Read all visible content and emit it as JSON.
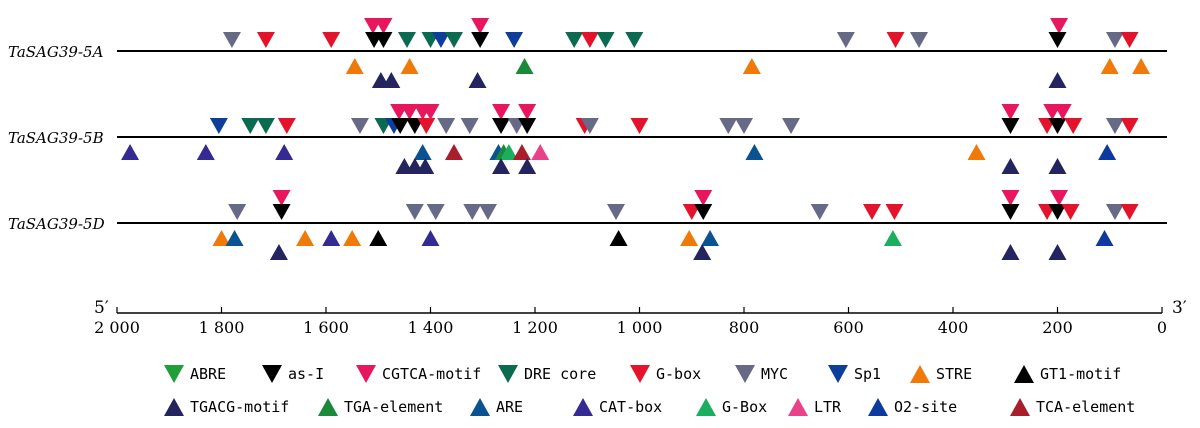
{
  "chart_data": {
    "type": "cis-element-map",
    "axis": {
      "min": 0,
      "max": 2000,
      "reversed": true,
      "ticks": [
        {
          "value": 2000,
          "label": "2 000"
        },
        {
          "value": 1800,
          "label": "1 800"
        },
        {
          "value": 1600,
          "label": "1 600"
        },
        {
          "value": 1400,
          "label": "1 400"
        },
        {
          "value": 1200,
          "label": "1 200"
        },
        {
          "value": 1000,
          "label": "1 000"
        },
        {
          "value": 800,
          "label": "800"
        },
        {
          "value": 600,
          "label": "600"
        },
        {
          "value": 400,
          "label": "400"
        },
        {
          "value": 200,
          "label": "200"
        },
        {
          "value": 0,
          "label": "0"
        }
      ],
      "start_label": "5′",
      "end_label": "3′"
    },
    "elements": [
      {
        "key": "ABRE",
        "name": "ABRE",
        "color": "#1f9e3a",
        "dir": "down"
      },
      {
        "key": "asI",
        "name": "as-I",
        "color": "#000000",
        "dir": "down"
      },
      {
        "key": "CGTCA",
        "name": "CGTCA-motif",
        "color": "#e8175d",
        "dir": "down"
      },
      {
        "key": "DRE",
        "name": "DRE core",
        "color": "#0b6b50",
        "dir": "down"
      },
      {
        "key": "Gbox",
        "name": "G-box",
        "color": "#e3132b",
        "dir": "down"
      },
      {
        "key": "MYC",
        "name": "MYC",
        "color": "#666a86",
        "dir": "down"
      },
      {
        "key": "Sp1",
        "name": "Sp1",
        "color": "#0d3e99",
        "dir": "down"
      },
      {
        "key": "STRE",
        "name": "STRE",
        "color": "#ef7a0a",
        "dir": "up"
      },
      {
        "key": "GT1",
        "name": "GT1-motif",
        "color": "#000000",
        "dir": "up"
      },
      {
        "key": "TGACG",
        "name": "TGACG-motif",
        "color": "#24245e",
        "dir": "up"
      },
      {
        "key": "TGA",
        "name": "TGA-element",
        "color": "#1a8a3a",
        "dir": "up"
      },
      {
        "key": "ARE",
        "name": "ARE",
        "color": "#0a5291",
        "dir": "up"
      },
      {
        "key": "CAT",
        "name": "CAT-box",
        "color": "#352a91",
        "dir": "up"
      },
      {
        "key": "GBoxUp",
        "name": "G-Box",
        "color": "#1aae5e",
        "dir": "up"
      },
      {
        "key": "LTR",
        "name": "LTR",
        "color": "#e8428a",
        "dir": "up"
      },
      {
        "key": "O2",
        "name": "O2-site",
        "color": "#0e3aa0",
        "dir": "up"
      },
      {
        "key": "TCA",
        "name": "TCA-element",
        "color": "#a81e2a",
        "dir": "up"
      }
    ],
    "genes": [
      {
        "name": "TaSAG39-5A",
        "sites": [
          {
            "type": "MYC",
            "pos": 1780,
            "level": 0
          },
          {
            "type": "Gbox",
            "pos": 1715,
            "level": 0
          },
          {
            "type": "Gbox",
            "pos": 1590,
            "level": 0
          },
          {
            "type": "CGTCA",
            "pos": 1510,
            "level": 1
          },
          {
            "type": "CGTCA",
            "pos": 1490,
            "level": 1
          },
          {
            "type": "asI",
            "pos": 1508,
            "level": 0
          },
          {
            "type": "asI",
            "pos": 1490,
            "level": 0
          },
          {
            "type": "DRE",
            "pos": 1445,
            "level": 0
          },
          {
            "type": "DRE",
            "pos": 1400,
            "level": 0
          },
          {
            "type": "Sp1",
            "pos": 1380,
            "level": 0
          },
          {
            "type": "DRE",
            "pos": 1355,
            "level": 0
          },
          {
            "type": "CGTCA",
            "pos": 1305,
            "level": 1
          },
          {
            "type": "asI",
            "pos": 1305,
            "level": 0
          },
          {
            "type": "Sp1",
            "pos": 1240,
            "level": 0
          },
          {
            "type": "DRE",
            "pos": 1125,
            "level": 0
          },
          {
            "type": "Gbox",
            "pos": 1095,
            "level": 0
          },
          {
            "type": "DRE",
            "pos": 1065,
            "level": 0
          },
          {
            "type": "DRE",
            "pos": 1010,
            "level": 0
          },
          {
            "type": "MYC",
            "pos": 605,
            "level": 0
          },
          {
            "type": "Gbox",
            "pos": 510,
            "level": 0
          },
          {
            "type": "MYC",
            "pos": 465,
            "level": 0
          },
          {
            "type": "CGTCA",
            "pos": 197,
            "level": 1
          },
          {
            "type": "asI",
            "pos": 200,
            "level": 0
          },
          {
            "type": "MYC",
            "pos": 90,
            "level": 0
          },
          {
            "type": "Gbox",
            "pos": 62,
            "level": 0
          },
          {
            "type": "STRE",
            "pos": 1545,
            "level": 0
          },
          {
            "type": "TGACG",
            "pos": 1495,
            "level": 1
          },
          {
            "type": "TGACG",
            "pos": 1475,
            "level": 1
          },
          {
            "type": "STRE",
            "pos": 1440,
            "level": 0
          },
          {
            "type": "TGACG",
            "pos": 1310,
            "level": 1
          },
          {
            "type": "TGA",
            "pos": 1220,
            "level": 0
          },
          {
            "type": "STRE",
            "pos": 785,
            "level": 0
          },
          {
            "type": "TGACG",
            "pos": 200,
            "level": 1
          },
          {
            "type": "STRE",
            "pos": 100,
            "level": 0
          },
          {
            "type": "STRE",
            "pos": 40,
            "level": 0
          }
        ]
      },
      {
        "name": "TaSAG39-5B",
        "sites": [
          {
            "type": "Sp1",
            "pos": 1805,
            "level": 0
          },
          {
            "type": "DRE",
            "pos": 1745,
            "level": 0
          },
          {
            "type": "DRE",
            "pos": 1715,
            "level": 0
          },
          {
            "type": "Gbox",
            "pos": 1675,
            "level": 0
          },
          {
            "type": "MYC",
            "pos": 1535,
            "level": 0
          },
          {
            "type": "DRE",
            "pos": 1490,
            "level": 0
          },
          {
            "type": "Sp1",
            "pos": 1470,
            "level": 0
          },
          {
            "type": "CGTCA",
            "pos": 1460,
            "level": 1
          },
          {
            "type": "asI",
            "pos": 1458,
            "level": 0
          },
          {
            "type": "CGTCA",
            "pos": 1440,
            "level": 1
          },
          {
            "type": "asI",
            "pos": 1430,
            "level": 0
          },
          {
            "type": "CGTCA",
            "pos": 1415,
            "level": 1
          },
          {
            "type": "Gbox",
            "pos": 1408,
            "level": 0
          },
          {
            "type": "CGTCA",
            "pos": 1400,
            "level": 1
          },
          {
            "type": "MYC",
            "pos": 1370,
            "level": 0
          },
          {
            "type": "MYC",
            "pos": 1325,
            "level": 0
          },
          {
            "type": "CGTCA",
            "pos": 1265,
            "level": 1
          },
          {
            "type": "asI",
            "pos": 1265,
            "level": 0
          },
          {
            "type": "MYC",
            "pos": 1235,
            "level": 0
          },
          {
            "type": "CGTCA",
            "pos": 1215,
            "level": 1
          },
          {
            "type": "asI",
            "pos": 1215,
            "level": 0
          },
          {
            "type": "Gbox",
            "pos": 1105,
            "level": 0
          },
          {
            "type": "MYC",
            "pos": 1095,
            "level": 0
          },
          {
            "type": "Gbox",
            "pos": 1000,
            "level": 0
          },
          {
            "type": "MYC",
            "pos": 830,
            "level": 0
          },
          {
            "type": "MYC",
            "pos": 800,
            "level": 0
          },
          {
            "type": "MYC",
            "pos": 710,
            "level": 0
          },
          {
            "type": "CGTCA",
            "pos": 290,
            "level": 1
          },
          {
            "type": "asI",
            "pos": 290,
            "level": 0
          },
          {
            "type": "CGTCA",
            "pos": 210,
            "level": 1
          },
          {
            "type": "Gbox",
            "pos": 220,
            "level": 0
          },
          {
            "type": "asI",
            "pos": 200,
            "level": 0
          },
          {
            "type": "CGTCA",
            "pos": 190,
            "level": 1
          },
          {
            "type": "Gbox",
            "pos": 170,
            "level": 0
          },
          {
            "type": "MYC",
            "pos": 90,
            "level": 0
          },
          {
            "type": "Gbox",
            "pos": 62,
            "level": 0
          },
          {
            "type": "CAT",
            "pos": 1975,
            "level": 0
          },
          {
            "type": "CAT",
            "pos": 1830,
            "level": 0
          },
          {
            "type": "CAT",
            "pos": 1680,
            "level": 0
          },
          {
            "type": "ARE",
            "pos": 1415,
            "level": 0
          },
          {
            "type": "TGACG",
            "pos": 1450,
            "level": 1
          },
          {
            "type": "TGACG",
            "pos": 1430,
            "level": 1
          },
          {
            "type": "TGACG",
            "pos": 1410,
            "level": 1
          },
          {
            "type": "TCA",
            "pos": 1355,
            "level": 0
          },
          {
            "type": "ARE",
            "pos": 1270,
            "level": 0
          },
          {
            "type": "TGA",
            "pos": 1260,
            "level": 0
          },
          {
            "type": "GBoxUp",
            "pos": 1250,
            "level": 0
          },
          {
            "type": "TCA",
            "pos": 1225,
            "level": 0
          },
          {
            "type": "LTR",
            "pos": 1190,
            "level": 0
          },
          {
            "type": "TGACG",
            "pos": 1265,
            "level": 1
          },
          {
            "type": "TGACG",
            "pos": 1215,
            "level": 1
          },
          {
            "type": "ARE",
            "pos": 780,
            "level": 0
          },
          {
            "type": "STRE",
            "pos": 355,
            "level": 0
          },
          {
            "type": "TGACG",
            "pos": 290,
            "level": 1
          },
          {
            "type": "TGACG",
            "pos": 200,
            "level": 1
          },
          {
            "type": "O2",
            "pos": 105,
            "level": 0
          }
        ]
      },
      {
        "name": "TaSAG39-5D",
        "sites": [
          {
            "type": "MYC",
            "pos": 1770,
            "level": 0
          },
          {
            "type": "CGTCA",
            "pos": 1685,
            "level": 1
          },
          {
            "type": "asI",
            "pos": 1685,
            "level": 0
          },
          {
            "type": "MYC",
            "pos": 1430,
            "level": 0
          },
          {
            "type": "MYC",
            "pos": 1390,
            "level": 0
          },
          {
            "type": "MYC",
            "pos": 1320,
            "level": 0
          },
          {
            "type": "MYC",
            "pos": 1290,
            "level": 0
          },
          {
            "type": "MYC",
            "pos": 1045,
            "level": 0
          },
          {
            "type": "Gbox",
            "pos": 900,
            "level": 0
          },
          {
            "type": "CGTCA",
            "pos": 878,
            "level": 1
          },
          {
            "type": "asI",
            "pos": 878,
            "level": 0
          },
          {
            "type": "MYC",
            "pos": 655,
            "level": 0
          },
          {
            "type": "Gbox",
            "pos": 555,
            "level": 0
          },
          {
            "type": "Gbox",
            "pos": 512,
            "level": 0
          },
          {
            "type": "CGTCA",
            "pos": 290,
            "level": 1
          },
          {
            "type": "asI",
            "pos": 290,
            "level": 0
          },
          {
            "type": "Gbox",
            "pos": 220,
            "level": 0
          },
          {
            "type": "CGTCA",
            "pos": 197,
            "level": 1
          },
          {
            "type": "asI",
            "pos": 200,
            "level": 0
          },
          {
            "type": "Gbox",
            "pos": 175,
            "level": 0
          },
          {
            "type": "MYC",
            "pos": 90,
            "level": 0
          },
          {
            "type": "Gbox",
            "pos": 62,
            "level": 0
          },
          {
            "type": "STRE",
            "pos": 1800,
            "level": 0
          },
          {
            "type": "ARE",
            "pos": 1775,
            "level": 0
          },
          {
            "type": "TGACG",
            "pos": 1690,
            "level": 1
          },
          {
            "type": "STRE",
            "pos": 1640,
            "level": 0
          },
          {
            "type": "CAT",
            "pos": 1590,
            "level": 0
          },
          {
            "type": "STRE",
            "pos": 1550,
            "level": 0
          },
          {
            "type": "GT1",
            "pos": 1500,
            "level": 0
          },
          {
            "type": "CAT",
            "pos": 1400,
            "level": 0
          },
          {
            "type": "GT1",
            "pos": 1040,
            "level": 0
          },
          {
            "type": "STRE",
            "pos": 905,
            "level": 0
          },
          {
            "type": "ARE",
            "pos": 865,
            "level": 0
          },
          {
            "type": "TGACG",
            "pos": 880,
            "level": 1
          },
          {
            "type": "GBoxUp",
            "pos": 515,
            "level": 0
          },
          {
            "type": "TGACG",
            "pos": 290,
            "level": 1
          },
          {
            "type": "TGACG",
            "pos": 200,
            "level": 1
          },
          {
            "type": "O2",
            "pos": 110,
            "level": 0
          }
        ]
      }
    ]
  }
}
